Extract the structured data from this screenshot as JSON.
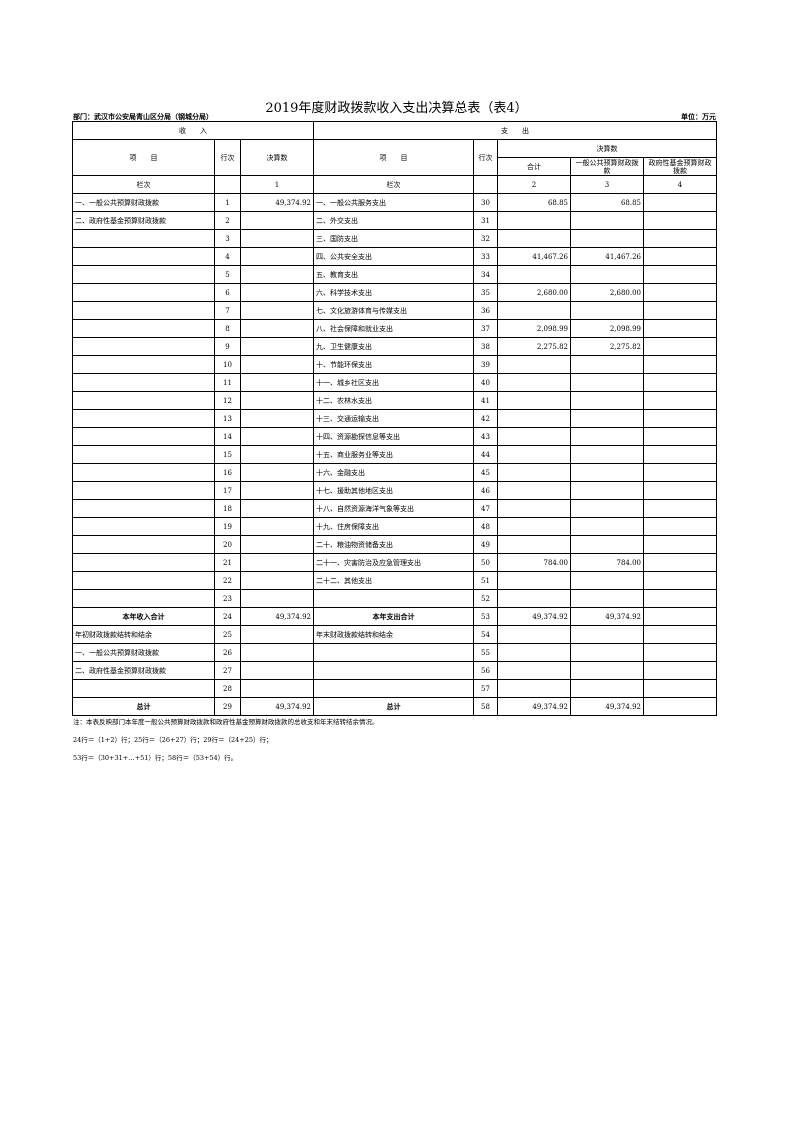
{
  "title": "2019年度财政拨款收入支出决算总表（表4）",
  "department": "部门：武汉市公安局青山区分局（钢城分局）",
  "unit": "单位：万元",
  "headers": {
    "income": "收　　入",
    "expense": "支　　出",
    "item": "项　　目",
    "line": "行次",
    "amount": "决算数",
    "total": "合计",
    "general": "一般公共预算财政拨款",
    "gov_fund": "政府性基金预算财政拨款",
    "col_label": "栏次",
    "col1": "1",
    "col2": "2",
    "col3": "3",
    "col4": "4"
  },
  "rows": [
    [
      "一、一般公共预算财政拨款",
      "1",
      "49,374.92",
      "一、一般公共服务支出",
      "30",
      "68.85",
      "68.85",
      ""
    ],
    [
      "二、政府性基金预算财政拨款",
      "2",
      "",
      "二、外交支出",
      "31",
      "",
      "",
      ""
    ],
    [
      "",
      "3",
      "",
      "三、国防支出",
      "32",
      "",
      "",
      ""
    ],
    [
      "",
      "4",
      "",
      "四、公共安全支出",
      "33",
      "41,467.26",
      "41,467.26",
      ""
    ],
    [
      "",
      "5",
      "",
      "五、教育支出",
      "34",
      "",
      "",
      ""
    ],
    [
      "",
      "6",
      "",
      "六、科学技术支出",
      "35",
      "2,680.00",
      "2,680.00",
      ""
    ],
    [
      "",
      "7",
      "",
      "七、文化旅游体育与传媒支出",
      "36",
      "",
      "",
      ""
    ],
    [
      "",
      "8",
      "",
      "八、社会保障和就业支出",
      "37",
      "2,098.99",
      "2,098.99",
      ""
    ],
    [
      "",
      "9",
      "",
      "九、卫生健康支出",
      "38",
      "2,275.82",
      "2,275.82",
      ""
    ],
    [
      "",
      "10",
      "",
      "十、节能环保支出",
      "39",
      "",
      "",
      ""
    ],
    [
      "",
      "11",
      "",
      "十一、城乡社区支出",
      "40",
      "",
      "",
      ""
    ],
    [
      "",
      "12",
      "",
      "十二、农林水支出",
      "41",
      "",
      "",
      ""
    ],
    [
      "",
      "13",
      "",
      "十三、交通运输支出",
      "42",
      "",
      "",
      ""
    ],
    [
      "",
      "14",
      "",
      "十四、资源勘探信息等支出",
      "43",
      "",
      "",
      ""
    ],
    [
      "",
      "15",
      "",
      "十五、商业服务业等支出",
      "44",
      "",
      "",
      ""
    ],
    [
      "",
      "16",
      "",
      "十六、金融支出",
      "45",
      "",
      "",
      ""
    ],
    [
      "",
      "17",
      "",
      "十七、援助其他地区支出",
      "46",
      "",
      "",
      ""
    ],
    [
      "",
      "18",
      "",
      "十八、自然资源海洋气象等支出",
      "47",
      "",
      "",
      ""
    ],
    [
      "",
      "19",
      "",
      "十九、住房保障支出",
      "48",
      "",
      "",
      ""
    ],
    [
      "",
      "20",
      "",
      "二十、粮油物资储备支出",
      "49",
      "",
      "",
      ""
    ],
    [
      "",
      "21",
      "",
      "二十一、灾害防治及应急管理支出",
      "50",
      "784.00",
      "784.00",
      ""
    ],
    [
      "",
      "22",
      "",
      "二十二、其他支出",
      "51",
      "",
      "",
      ""
    ],
    [
      "",
      "23",
      "",
      "",
      "52",
      "",
      "",
      ""
    ],
    [
      "本年收入合计",
      "24",
      "49,374.92",
      "本年支出合计",
      "53",
      "49,374.92",
      "49,374.92",
      ""
    ],
    [
      "年初财政拨款结转和结余",
      "25",
      "",
      "年末财政拨款结转和结余",
      "54",
      "",
      "",
      ""
    ],
    [
      "一、一般公共预算财政拨款",
      "26",
      "",
      "",
      "55",
      "",
      "",
      ""
    ],
    [
      "二、政府性基金预算财政拨款",
      "27",
      "",
      "",
      "56",
      "",
      "",
      ""
    ],
    [
      "",
      "28",
      "",
      "",
      "57",
      "",
      "",
      ""
    ],
    [
      "总计",
      "29",
      "49,374.92",
      "总计",
      "58",
      "49,374.92",
      "49,374.92",
      ""
    ]
  ],
  "notes": [
    "注：本表反映部门本年度一般公共预算财政拨款和政府性基金预算财政拨款的总收支和年末结转结余情况。",
    "24行＝（1+2）行；25行＝（26+27）行；29行＝（24+25）行；",
    "53行＝（30+31+…+51）行；58行＝（53+54）行。"
  ]
}
